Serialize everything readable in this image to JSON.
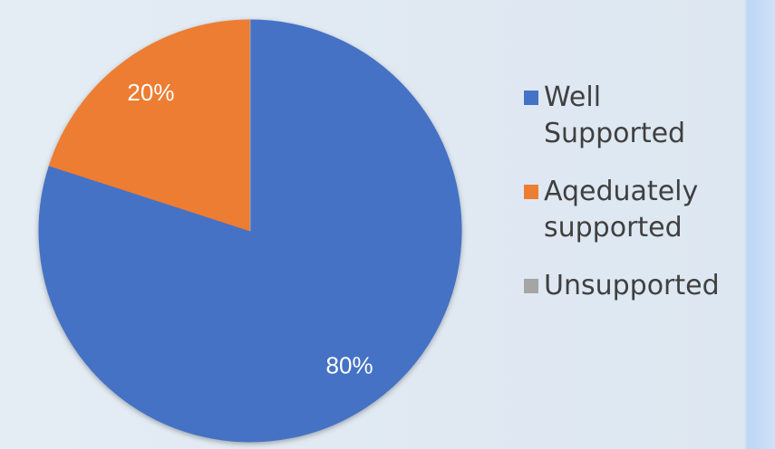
{
  "chart_data": {
    "type": "pie",
    "categories": [
      "Well Supported",
      "Aqeduately supported",
      "Unsupported"
    ],
    "values": [
      80,
      20,
      0
    ],
    "value_labels": [
      "80%",
      "20%",
      null
    ],
    "colors": [
      "#4472c4",
      "#ed7d31",
      "#a5a5a5"
    ],
    "legend": "right"
  }
}
